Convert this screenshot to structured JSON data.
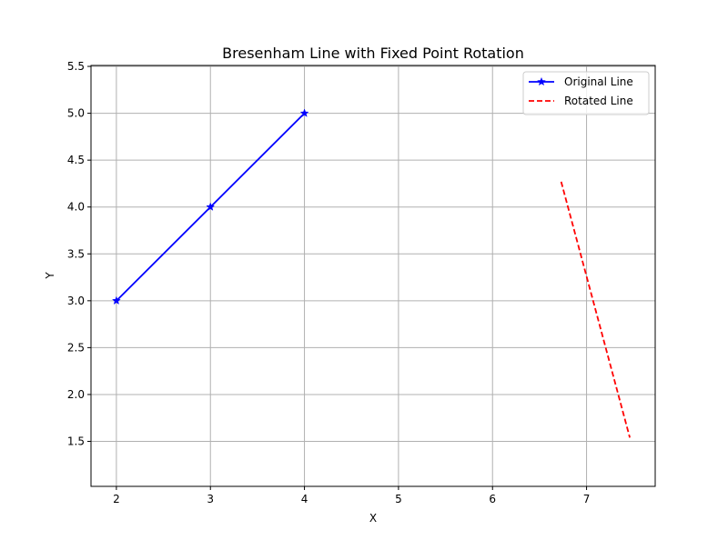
{
  "chart_data": {
    "type": "line",
    "title": "Bresenham Line with Fixed Point Rotation",
    "xlabel": "X",
    "ylabel": "Y",
    "xlim": [
      1.73,
      7.73
    ],
    "ylim": [
      1.02,
      5.51
    ],
    "xticks": [
      2,
      3,
      4,
      5,
      6,
      7
    ],
    "yticks": [
      1.5,
      2.0,
      2.5,
      3.0,
      3.5,
      4.0,
      4.5,
      5.0,
      5.5
    ],
    "grid": true,
    "legend_position": "top-right",
    "series": [
      {
        "name": "Original Line",
        "color": "#0000ff",
        "line_style": "solid",
        "marker": "star",
        "x": [
          2,
          3,
          4
        ],
        "y": [
          3,
          4,
          5
        ]
      },
      {
        "name": "Rotated Line",
        "color": "#ff0000",
        "line_style": "dashed",
        "marker": "none",
        "x": [
          6.73,
          7.46
        ],
        "y": [
          4.27,
          1.54
        ]
      }
    ]
  }
}
